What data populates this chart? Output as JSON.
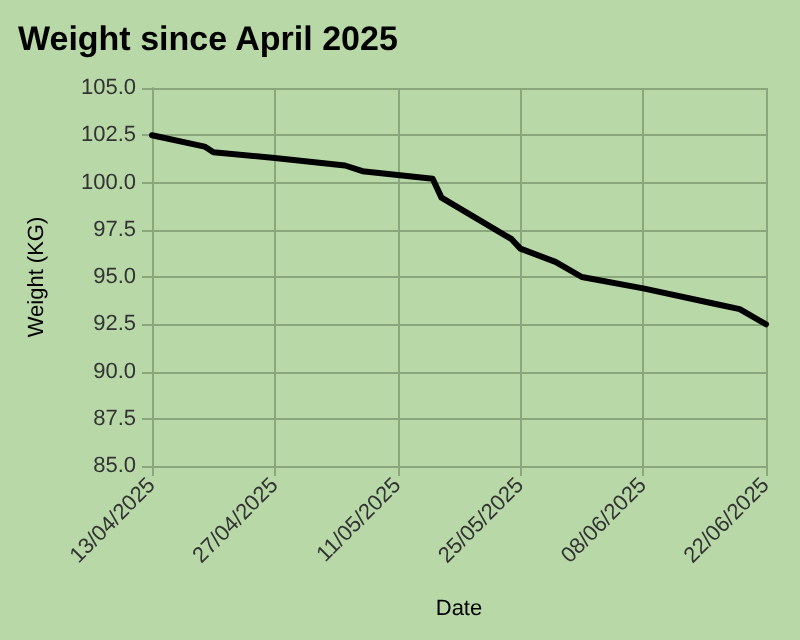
{
  "chart_data": {
    "type": "line",
    "title": "Weight since April 2025",
    "xlabel": "Date",
    "ylabel": "Weight (KG)",
    "series": [
      {
        "color": "#000000",
        "x": [
          "2025-04-13",
          "2025-04-19",
          "2025-04-20",
          "2025-04-27",
          "2025-05-05",
          "2025-05-07",
          "2025-05-11",
          "2025-05-15",
          "2025-05-16",
          "2025-05-24",
          "2025-05-25",
          "2025-05-29",
          "2025-06-01",
          "2025-06-08",
          "2025-06-16",
          "2025-06-19",
          "2025-06-22"
        ],
        "values": [
          102.5,
          101.9,
          101.6,
          101.3,
          100.9,
          100.6,
          100.4,
          100.2,
          99.2,
          97.0,
          96.5,
          95.8,
          95.0,
          94.4,
          93.6,
          93.3,
          92.5
        ]
      }
    ],
    "xlim": [
      "2025-04-13",
      "2025-06-22"
    ],
    "xticks": [
      {
        "value": "2025-04-13",
        "label": "13/04/2025"
      },
      {
        "value": "2025-04-27",
        "label": "27/04/2025"
      },
      {
        "value": "2025-05-11",
        "label": "11/05/2025"
      },
      {
        "value": "2025-05-25",
        "label": "25/05/2025"
      },
      {
        "value": "2025-06-08",
        "label": "08/06/2025"
      },
      {
        "value": "2025-06-22",
        "label": "22/06/2025"
      }
    ],
    "ylim": [
      85,
      105
    ],
    "yticks": [
      {
        "value": 85,
        "label": "85.0"
      },
      {
        "value": 87.5,
        "label": "87.5"
      },
      {
        "value": 90,
        "label": "90.0"
      },
      {
        "value": 92.5,
        "label": "92.5"
      },
      {
        "value": 95,
        "label": "95.0"
      },
      {
        "value": 97.5,
        "label": "97.5"
      },
      {
        "value": 100,
        "label": "100.0"
      },
      {
        "value": 102.5,
        "label": "102.5"
      },
      {
        "value": 105,
        "label": "105.0"
      }
    ],
    "grid": true,
    "marker": "none",
    "line_style": "solid"
  }
}
